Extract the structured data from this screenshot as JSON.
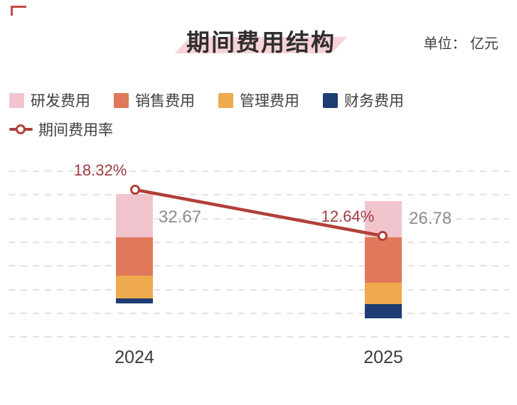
{
  "header": {
    "title": "期间费用结构",
    "unit_label": "单位： 亿元",
    "highlight_color": "#f7d2d6"
  },
  "legend": {
    "bar_items": [
      {
        "label": "研发费用",
        "color": "#f2c5ce"
      },
      {
        "label": "销售费用",
        "color": "#e0795b"
      },
      {
        "label": "管理费用",
        "color": "#efa94e"
      },
      {
        "label": "财务费用",
        "color": "#1e3d72"
      }
    ],
    "line_item": {
      "label": "期间费用率",
      "color": "#b13f38"
    }
  },
  "chart_data": {
    "type": "bar",
    "stacked": true,
    "unit": "亿元",
    "title": "期间费用结构",
    "categories": [
      "2024",
      "2025"
    ],
    "series": [
      {
        "name": "研发费用",
        "color": "#f2c5ce",
        "values": [
          12.9,
          8.3
        ]
      },
      {
        "name": "销售费用",
        "color": "#e0795b",
        "values": [
          11.5,
          10.4
        ]
      },
      {
        "name": "管理费用",
        "color": "#efa94e",
        "values": [
          6.8,
          4.9
        ]
      },
      {
        "name": "财务费用",
        "color": "#1e3d72",
        "values": [
          1.5,
          3.2
        ]
      }
    ],
    "totals": {
      "labels": [
        "32.67",
        "26.78"
      ],
      "values": [
        32.67,
        26.78
      ]
    },
    "rate_line": {
      "name": "期间费用率",
      "color": "#b13f38",
      "values_pct": [
        18.32,
        12.64
      ],
      "labels": [
        "18.32%",
        "12.64%"
      ]
    },
    "grid": {
      "style": "dashed",
      "orientation": "horizontal"
    },
    "legend_position": "top-left",
    "xlabel": "",
    "ylabel": ""
  },
  "colors": {
    "rate_label": "#9e3b41",
    "total_label": "#8c8c8c",
    "category_label": "#3b3b3b",
    "gridline": "#e2e2e2",
    "title_text": "#2f2f2f",
    "corner_mark": "#c24a43"
  }
}
